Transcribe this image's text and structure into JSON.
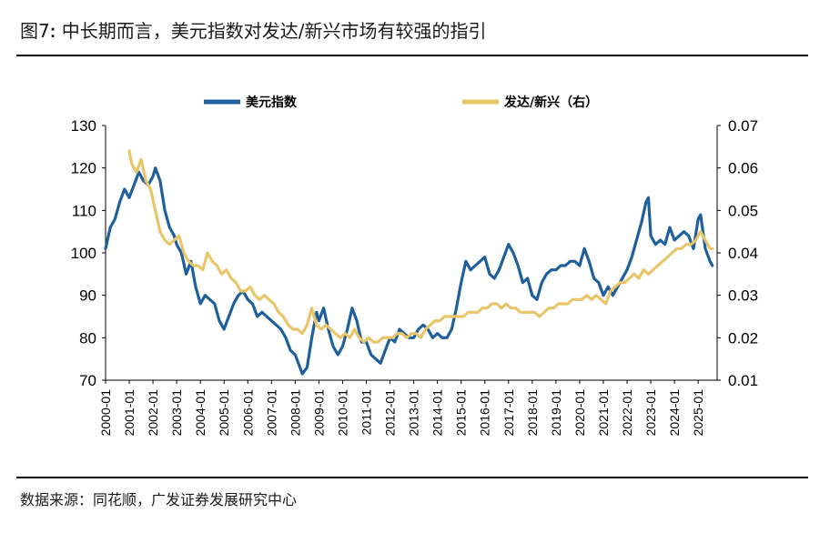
{
  "figure": {
    "label": "图7",
    "colon": ":",
    "title": "中长期而言，美元指数对发达/新兴市场有较强的指引",
    "source": "数据来源：同花顺，广发证券发展研究中心"
  },
  "chart_data": {
    "type": "line",
    "x_tick_labels": [
      "2000-01",
      "2001-01",
      "2002-01",
      "2003-01",
      "2004-01",
      "2005-01",
      "2006-01",
      "2007-01",
      "2008-01",
      "2009-01",
      "2010-01",
      "2011-01",
      "2012-01",
      "2013-01",
      "2014-01",
      "2015-01",
      "2016-01",
      "2017-01",
      "2018-01",
      "2019-01",
      "2020-01",
      "2021-01",
      "2022-01",
      "2023-01",
      "2024-01",
      "2025-01"
    ],
    "y_left": {
      "min": 70,
      "max": 130,
      "ticks": [
        "70",
        "80",
        "90",
        "100",
        "110",
        "120",
        "130"
      ]
    },
    "y_right": {
      "min": 0.01,
      "max": 0.07,
      "ticks": [
        "0.01",
        "0.02",
        "0.03",
        "0.04",
        "0.05",
        "0.06",
        "0.07"
      ]
    },
    "series": [
      {
        "name": "美元指数",
        "axis": "left",
        "color": "#1f5f9b",
        "points": [
          [
            2000.0,
            101
          ],
          [
            2000.2,
            106
          ],
          [
            2000.4,
            108
          ],
          [
            2000.6,
            112
          ],
          [
            2000.8,
            115
          ],
          [
            2001.0,
            113
          ],
          [
            2001.2,
            116
          ],
          [
            2001.4,
            119
          ],
          [
            2001.6,
            117
          ],
          [
            2001.8,
            116
          ],
          [
            2002.0,
            118
          ],
          [
            2002.1,
            120
          ],
          [
            2002.3,
            117
          ],
          [
            2002.5,
            110
          ],
          [
            2002.7,
            106
          ],
          [
            2002.9,
            104
          ],
          [
            2003.0,
            102
          ],
          [
            2003.2,
            100
          ],
          [
            2003.4,
            95
          ],
          [
            2003.6,
            98
          ],
          [
            2003.8,
            92
          ],
          [
            2004.0,
            88
          ],
          [
            2004.2,
            90
          ],
          [
            2004.4,
            89
          ],
          [
            2004.6,
            88
          ],
          [
            2004.8,
            84
          ],
          [
            2005.0,
            82
          ],
          [
            2005.2,
            85
          ],
          [
            2005.4,
            88
          ],
          [
            2005.6,
            90
          ],
          [
            2005.8,
            91
          ],
          [
            2006.0,
            89
          ],
          [
            2006.2,
            88
          ],
          [
            2006.4,
            85
          ],
          [
            2006.6,
            86
          ],
          [
            2006.8,
            85
          ],
          [
            2007.0,
            84
          ],
          [
            2007.2,
            83
          ],
          [
            2007.4,
            82
          ],
          [
            2007.6,
            80
          ],
          [
            2007.8,
            77
          ],
          [
            2008.0,
            76
          ],
          [
            2008.2,
            73
          ],
          [
            2008.3,
            71.5
          ],
          [
            2008.5,
            73
          ],
          [
            2008.7,
            80
          ],
          [
            2008.9,
            86
          ],
          [
            2009.0,
            84
          ],
          [
            2009.2,
            87
          ],
          [
            2009.4,
            82
          ],
          [
            2009.6,
            78
          ],
          [
            2009.8,
            76
          ],
          [
            2010.0,
            78
          ],
          [
            2010.2,
            82
          ],
          [
            2010.4,
            87
          ],
          [
            2010.6,
            84
          ],
          [
            2010.8,
            79
          ],
          [
            2011.0,
            79
          ],
          [
            2011.2,
            76
          ],
          [
            2011.4,
            75
          ],
          [
            2011.6,
            74
          ],
          [
            2011.8,
            77
          ],
          [
            2012.0,
            80
          ],
          [
            2012.2,
            79
          ],
          [
            2012.4,
            82
          ],
          [
            2012.6,
            81
          ],
          [
            2012.8,
            80
          ],
          [
            2013.0,
            80
          ],
          [
            2013.2,
            82
          ],
          [
            2013.4,
            83
          ],
          [
            2013.6,
            82
          ],
          [
            2013.8,
            80
          ],
          [
            2014.0,
            81
          ],
          [
            2014.2,
            80
          ],
          [
            2014.4,
            80
          ],
          [
            2014.6,
            82
          ],
          [
            2014.8,
            87
          ],
          [
            2015.0,
            93
          ],
          [
            2015.2,
            98
          ],
          [
            2015.4,
            96
          ],
          [
            2015.6,
            97
          ],
          [
            2015.8,
            98
          ],
          [
            2016.0,
            99
          ],
          [
            2016.2,
            95
          ],
          [
            2016.4,
            94
          ],
          [
            2016.6,
            96
          ],
          [
            2016.8,
            99
          ],
          [
            2017.0,
            102
          ],
          [
            2017.2,
            100
          ],
          [
            2017.4,
            97
          ],
          [
            2017.6,
            93
          ],
          [
            2017.8,
            94
          ],
          [
            2018.0,
            90
          ],
          [
            2018.2,
            89
          ],
          [
            2018.4,
            93
          ],
          [
            2018.6,
            95
          ],
          [
            2018.8,
            96
          ],
          [
            2019.0,
            96
          ],
          [
            2019.2,
            97
          ],
          [
            2019.4,
            97
          ],
          [
            2019.6,
            98
          ],
          [
            2019.8,
            98
          ],
          [
            2020.0,
            97
          ],
          [
            2020.2,
            101
          ],
          [
            2020.4,
            98
          ],
          [
            2020.6,
            94
          ],
          [
            2020.8,
            93
          ],
          [
            2021.0,
            90
          ],
          [
            2021.2,
            92
          ],
          [
            2021.4,
            90
          ],
          [
            2021.6,
            92
          ],
          [
            2021.8,
            94
          ],
          [
            2022.0,
            96
          ],
          [
            2022.2,
            99
          ],
          [
            2022.4,
            103
          ],
          [
            2022.6,
            107
          ],
          [
            2022.8,
            112
          ],
          [
            2022.9,
            113
          ],
          [
            2023.0,
            104
          ],
          [
            2023.2,
            102
          ],
          [
            2023.4,
            103
          ],
          [
            2023.6,
            102
          ],
          [
            2023.8,
            106
          ],
          [
            2024.0,
            103
          ],
          [
            2024.2,
            104
          ],
          [
            2024.4,
            105
          ],
          [
            2024.6,
            104
          ],
          [
            2024.8,
            101
          ],
          [
            2025.0,
            108
          ],
          [
            2025.1,
            109
          ],
          [
            2025.3,
            101
          ],
          [
            2025.5,
            98
          ],
          [
            2025.6,
            97
          ]
        ]
      },
      {
        "name": "发达/新兴（右）",
        "axis": "right",
        "color": "#e9c56a",
        "points": [
          [
            2001.0,
            0.064
          ],
          [
            2001.1,
            0.061
          ],
          [
            2001.3,
            0.059
          ],
          [
            2001.5,
            0.062
          ],
          [
            2001.7,
            0.057
          ],
          [
            2001.9,
            0.055
          ],
          [
            2002.1,
            0.05
          ],
          [
            2002.3,
            0.045
          ],
          [
            2002.5,
            0.043
          ],
          [
            2002.7,
            0.042
          ],
          [
            2002.9,
            0.043
          ],
          [
            2003.1,
            0.044
          ],
          [
            2003.3,
            0.04
          ],
          [
            2003.5,
            0.038
          ],
          [
            2003.7,
            0.037
          ],
          [
            2003.9,
            0.037
          ],
          [
            2004.1,
            0.036
          ],
          [
            2004.3,
            0.04
          ],
          [
            2004.5,
            0.038
          ],
          [
            2004.7,
            0.037
          ],
          [
            2004.9,
            0.035
          ],
          [
            2005.1,
            0.036
          ],
          [
            2005.3,
            0.034
          ],
          [
            2005.5,
            0.033
          ],
          [
            2005.7,
            0.031
          ],
          [
            2005.9,
            0.031
          ],
          [
            2006.1,
            0.032
          ],
          [
            2006.3,
            0.03
          ],
          [
            2006.5,
            0.029
          ],
          [
            2006.7,
            0.03
          ],
          [
            2006.9,
            0.029
          ],
          [
            2007.1,
            0.028
          ],
          [
            2007.3,
            0.026
          ],
          [
            2007.5,
            0.025
          ],
          [
            2007.7,
            0.023
          ],
          [
            2007.9,
            0.022
          ],
          [
            2008.1,
            0.022
          ],
          [
            2008.3,
            0.021
          ],
          [
            2008.5,
            0.023
          ],
          [
            2008.7,
            0.027
          ],
          [
            2008.9,
            0.023
          ],
          [
            2009.1,
            0.022
          ],
          [
            2009.3,
            0.023
          ],
          [
            2009.5,
            0.022
          ],
          [
            2009.7,
            0.021
          ],
          [
            2009.9,
            0.02
          ],
          [
            2010.1,
            0.021
          ],
          [
            2010.3,
            0.02
          ],
          [
            2010.5,
            0.022
          ],
          [
            2010.7,
            0.02
          ],
          [
            2010.9,
            0.019
          ],
          [
            2011.1,
            0.02
          ],
          [
            2011.3,
            0.019
          ],
          [
            2011.5,
            0.019
          ],
          [
            2011.7,
            0.02
          ],
          [
            2011.9,
            0.02
          ],
          [
            2012.1,
            0.02
          ],
          [
            2012.3,
            0.021
          ],
          [
            2012.5,
            0.021
          ],
          [
            2012.7,
            0.02
          ],
          [
            2012.9,
            0.021
          ],
          [
            2013.1,
            0.021
          ],
          [
            2013.3,
            0.02
          ],
          [
            2013.5,
            0.022
          ],
          [
            2013.7,
            0.023
          ],
          [
            2013.9,
            0.024
          ],
          [
            2014.1,
            0.024
          ],
          [
            2014.3,
            0.025
          ],
          [
            2014.5,
            0.025
          ],
          [
            2014.7,
            0.025
          ],
          [
            2014.9,
            0.025
          ],
          [
            2015.1,
            0.025
          ],
          [
            2015.3,
            0.026
          ],
          [
            2015.5,
            0.026
          ],
          [
            2015.7,
            0.026
          ],
          [
            2015.9,
            0.027
          ],
          [
            2016.1,
            0.027
          ],
          [
            2016.3,
            0.028
          ],
          [
            2016.5,
            0.028
          ],
          [
            2016.7,
            0.027
          ],
          [
            2016.9,
            0.028
          ],
          [
            2017.1,
            0.027
          ],
          [
            2017.3,
            0.027
          ],
          [
            2017.5,
            0.026
          ],
          [
            2017.7,
            0.026
          ],
          [
            2017.9,
            0.026
          ],
          [
            2018.1,
            0.026
          ],
          [
            2018.3,
            0.025
          ],
          [
            2018.5,
            0.026
          ],
          [
            2018.7,
            0.027
          ],
          [
            2018.9,
            0.027
          ],
          [
            2019.1,
            0.028
          ],
          [
            2019.3,
            0.028
          ],
          [
            2019.5,
            0.028
          ],
          [
            2019.7,
            0.029
          ],
          [
            2019.9,
            0.029
          ],
          [
            2020.1,
            0.029
          ],
          [
            2020.3,
            0.03
          ],
          [
            2020.5,
            0.029
          ],
          [
            2020.7,
            0.03
          ],
          [
            2020.9,
            0.029
          ],
          [
            2021.1,
            0.028
          ],
          [
            2021.3,
            0.031
          ],
          [
            2021.5,
            0.032
          ],
          [
            2021.7,
            0.033
          ],
          [
            2021.9,
            0.033
          ],
          [
            2022.1,
            0.034
          ],
          [
            2022.3,
            0.035
          ],
          [
            2022.5,
            0.034
          ],
          [
            2022.7,
            0.036
          ],
          [
            2022.9,
            0.035
          ],
          [
            2023.1,
            0.036
          ],
          [
            2023.3,
            0.037
          ],
          [
            2023.5,
            0.038
          ],
          [
            2023.7,
            0.039
          ],
          [
            2023.9,
            0.04
          ],
          [
            2024.1,
            0.041
          ],
          [
            2024.3,
            0.041
          ],
          [
            2024.5,
            0.042
          ],
          [
            2024.7,
            0.042
          ],
          [
            2024.9,
            0.043
          ],
          [
            2025.1,
            0.045
          ],
          [
            2025.3,
            0.043
          ],
          [
            2025.5,
            0.041
          ],
          [
            2025.6,
            0.041
          ]
        ]
      }
    ]
  }
}
